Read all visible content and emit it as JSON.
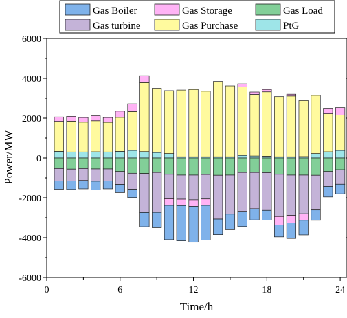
{
  "chart_data": {
    "type": "bar",
    "stacked": true,
    "xlabel": "Time/h",
    "ylabel": "Power/MW",
    "xlim": [
      0,
      24.5
    ],
    "ylim": [
      -6000,
      6000
    ],
    "x_ticks": [
      0,
      6,
      12,
      18,
      24
    ],
    "y_ticks": [
      -6000,
      -4000,
      -2000,
      0,
      2000,
      4000,
      6000
    ],
    "grid": false,
    "legend_position": "top",
    "x": [
      1,
      2,
      3,
      4,
      5,
      6,
      7,
      8,
      9,
      10,
      11,
      12,
      13,
      14,
      15,
      16,
      17,
      18,
      19,
      20,
      21,
      22,
      23,
      24
    ],
    "series": [
      {
        "name": "PtG",
        "color": "#9ee5e8",
        "values": [
          330,
          300,
          300,
          310,
          300,
          330,
          380,
          320,
          270,
          220,
          60,
          60,
          60,
          60,
          60,
          130,
          100,
          90,
          60,
          60,
          70,
          220,
          310,
          380
        ]
      },
      {
        "name": "Gas Purchase",
        "color": "#fffa9e",
        "values": [
          1510,
          1550,
          1500,
          1560,
          1490,
          1710,
          1950,
          3460,
          3230,
          3160,
          3350,
          3380,
          3290,
          3780,
          3560,
          3440,
          3090,
          3230,
          3020,
          3050,
          2810,
          2920,
          1910,
          1770
        ]
      },
      {
        "name": "Gas Storage",
        "color": "#ffb3f5",
        "values": [
          220,
          240,
          230,
          250,
          240,
          310,
          390,
          350,
          0,
          0,
          0,
          0,
          0,
          0,
          0,
          150,
          120,
          120,
          0,
          90,
          0,
          0,
          280,
          380
        ]
      },
      {
        "name": "Gas Load",
        "color": "#82cf98",
        "values": [
          -530,
          -560,
          -530,
          -550,
          -550,
          -680,
          -770,
          -780,
          -730,
          -820,
          -860,
          -860,
          -830,
          -870,
          -860,
          -730,
          -730,
          -740,
          -820,
          -860,
          -860,
          -870,
          -680,
          -590
        ]
      },
      {
        "name": "Gas turbine",
        "color": "#c4b3d8",
        "values": [
          -620,
          -600,
          -600,
          -620,
          -600,
          -650,
          -800,
          -1960,
          -2000,
          -1230,
          -1210,
          -1240,
          -1230,
          -2200,
          -1960,
          -1950,
          -1820,
          -1890,
          -2120,
          -2020,
          -1940,
          -1740,
          -750,
          -730
        ]
      },
      {
        "name": "Gas Storage",
        "color": "#ffb3f5",
        "values": [
          0,
          0,
          0,
          0,
          0,
          0,
          0,
          0,
          0,
          -330,
          -320,
          -330,
          -320,
          0,
          0,
          0,
          0,
          0,
          -420,
          -380,
          -330,
          0,
          0,
          0
        ]
      },
      {
        "name": "Gas Boiler",
        "color": "#7fb2ea",
        "values": [
          -420,
          -420,
          -420,
          -430,
          -400,
          -410,
          -420,
          -710,
          -770,
          -1720,
          -1770,
          -1800,
          -1740,
          -780,
          -780,
          -760,
          -560,
          -490,
          -600,
          -780,
          -730,
          -520,
          -530,
          -480
        ]
      }
    ],
    "legend": [
      {
        "label": "Gas Boiler",
        "color": "#7fb2ea"
      },
      {
        "label": "Gas Storage",
        "color": "#ffb3f5"
      },
      {
        "label": "Gas Load",
        "color": "#82cf98"
      },
      {
        "label": "Gas turbine",
        "color": "#c4b3d8"
      },
      {
        "label": "Gas Purchase",
        "color": "#fffa9e"
      },
      {
        "label": "PtG",
        "color": "#9ee5e8"
      }
    ]
  }
}
